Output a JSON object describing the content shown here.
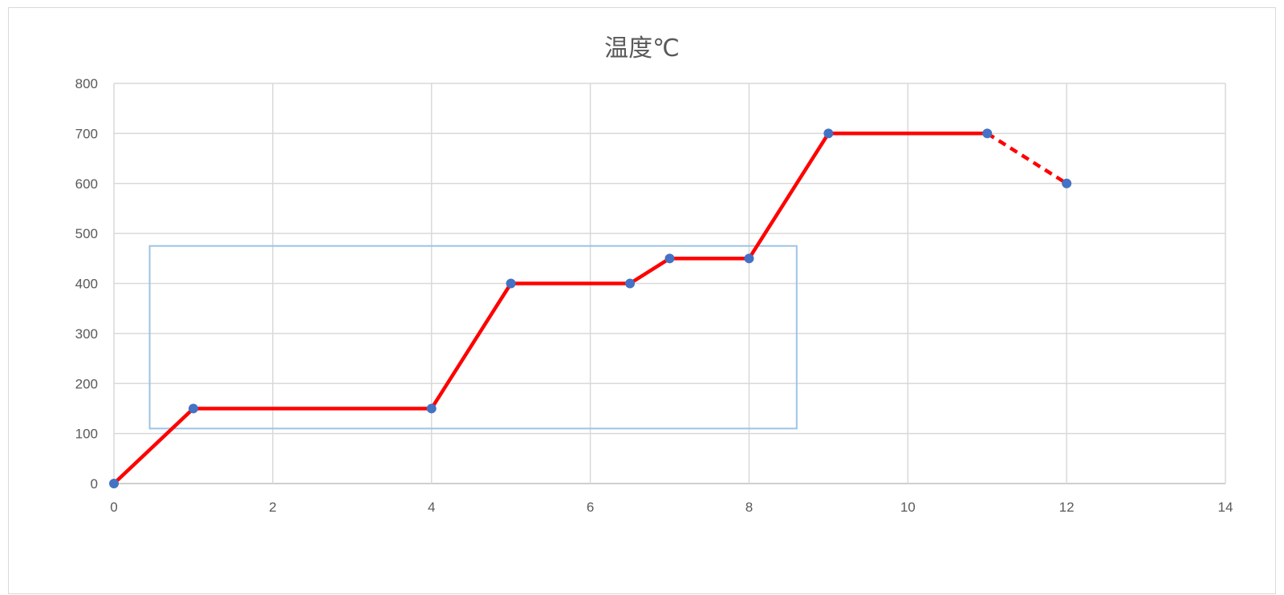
{
  "chart_data": {
    "type": "scatter",
    "title": "温度℃",
    "xlabel": "",
    "ylabel": "",
    "xlim": [
      0,
      14
    ],
    "ylim": [
      0,
      800
    ],
    "x_ticks": [
      0,
      2,
      4,
      6,
      8,
      10,
      12,
      14
    ],
    "y_ticks": [
      0,
      100,
      200,
      300,
      400,
      500,
      600,
      700,
      800
    ],
    "x_tick_labels": [
      "0",
      "2",
      "4",
      "6",
      "8",
      "10",
      "12",
      "14"
    ],
    "y_tick_labels": [
      "0",
      "100",
      "200",
      "300",
      "400",
      "500",
      "600",
      "700",
      "800"
    ],
    "grid": true,
    "legend": "none",
    "series": [
      {
        "points": [
          {
            "x": 0,
            "y": 0
          },
          {
            "x": 1,
            "y": 150
          },
          {
            "x": 4,
            "y": 150
          },
          {
            "x": 5,
            "y": 400
          },
          {
            "x": 6.5,
            "y": 400
          },
          {
            "x": 7,
            "y": 450
          },
          {
            "x": 8,
            "y": 450
          },
          {
            "x": 9,
            "y": 700
          },
          {
            "x": 11,
            "y": 700
          },
          {
            "x": 12,
            "y": 600
          }
        ],
        "marker_color": "#4472c4",
        "line_color": "#ff0000",
        "dashed_from_x": 11
      }
    ],
    "annotations": [
      {
        "type": "rectangle",
        "x_range": [
          0.45,
          8.6
        ],
        "y_range": [
          110,
          475
        ],
        "color": "#9dc3e6"
      }
    ]
  }
}
